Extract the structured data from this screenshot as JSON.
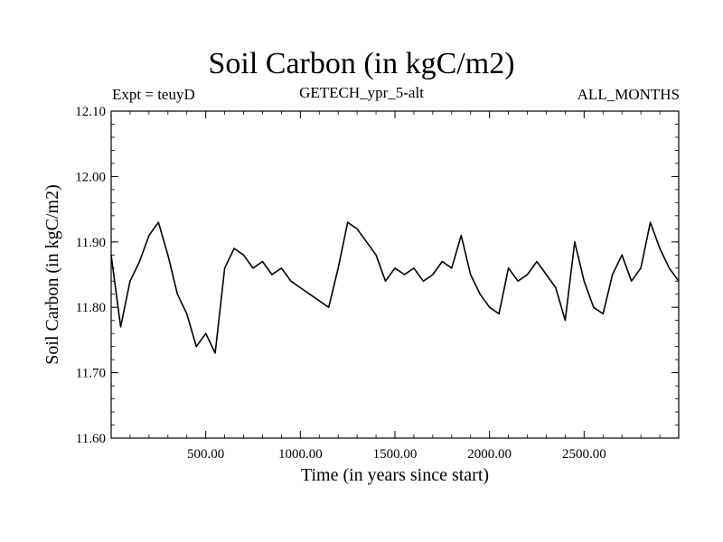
{
  "chart_data": {
    "type": "line",
    "title": "Soil Carbon (in kgC/m2)",
    "subtitle": "GETECH_ypr_5-alt",
    "left_annotation": "Expt = teuyD",
    "right_annotation": "ALL_MONTHS",
    "xlabel": "Time (in years since start)",
    "ylabel": "Soil Carbon (in kgC/m2)",
    "xlim": [
      0,
      3000
    ],
    "ylim": [
      11.6,
      12.1
    ],
    "xticks": [
      500,
      1000,
      1500,
      2000,
      2500
    ],
    "xtick_labels": [
      "500.00",
      "1000.00",
      "1500.00",
      "2000.00",
      "2500.00"
    ],
    "yticks": [
      11.6,
      11.7,
      11.8,
      11.9,
      12.0,
      12.1
    ],
    "ytick_labels": [
      "11.60",
      "11.70",
      "11.80",
      "11.90",
      "12.00",
      "12.10"
    ],
    "grid": false,
    "line_color": "#000000",
    "series": [
      {
        "x": [
          0,
          50,
          100,
          150,
          200,
          250,
          300,
          350,
          400,
          450,
          500,
          550,
          600,
          650,
          700,
          750,
          800,
          850,
          900,
          950,
          1000,
          1050,
          1100,
          1150,
          1200,
          1250,
          1300,
          1350,
          1400,
          1450,
          1500,
          1550,
          1600,
          1650,
          1700,
          1750,
          1800,
          1850,
          1900,
          1950,
          2000,
          2050,
          2100,
          2150,
          2200,
          2250,
          2300,
          2350,
          2400,
          2450,
          2500,
          2550,
          2600,
          2650,
          2700,
          2750,
          2800,
          2850,
          2900,
          2950,
          3000
        ],
        "y": [
          11.88,
          11.77,
          11.84,
          11.87,
          11.91,
          11.93,
          11.88,
          11.82,
          11.79,
          11.74,
          11.76,
          11.73,
          11.86,
          11.89,
          11.88,
          11.86,
          11.87,
          11.85,
          11.86,
          11.84,
          11.83,
          11.82,
          11.81,
          11.8,
          11.86,
          11.93,
          11.92,
          11.9,
          11.88,
          11.84,
          11.86,
          11.85,
          11.86,
          11.84,
          11.85,
          11.87,
          11.86,
          11.91,
          11.85,
          11.82,
          11.8,
          11.79,
          11.86,
          11.84,
          11.85,
          11.87,
          11.85,
          11.83,
          11.78,
          11.9,
          11.84,
          11.8,
          11.79,
          11.85,
          11.88,
          11.84,
          11.86,
          11.93,
          11.89,
          11.86,
          11.84
        ]
      }
    ]
  }
}
